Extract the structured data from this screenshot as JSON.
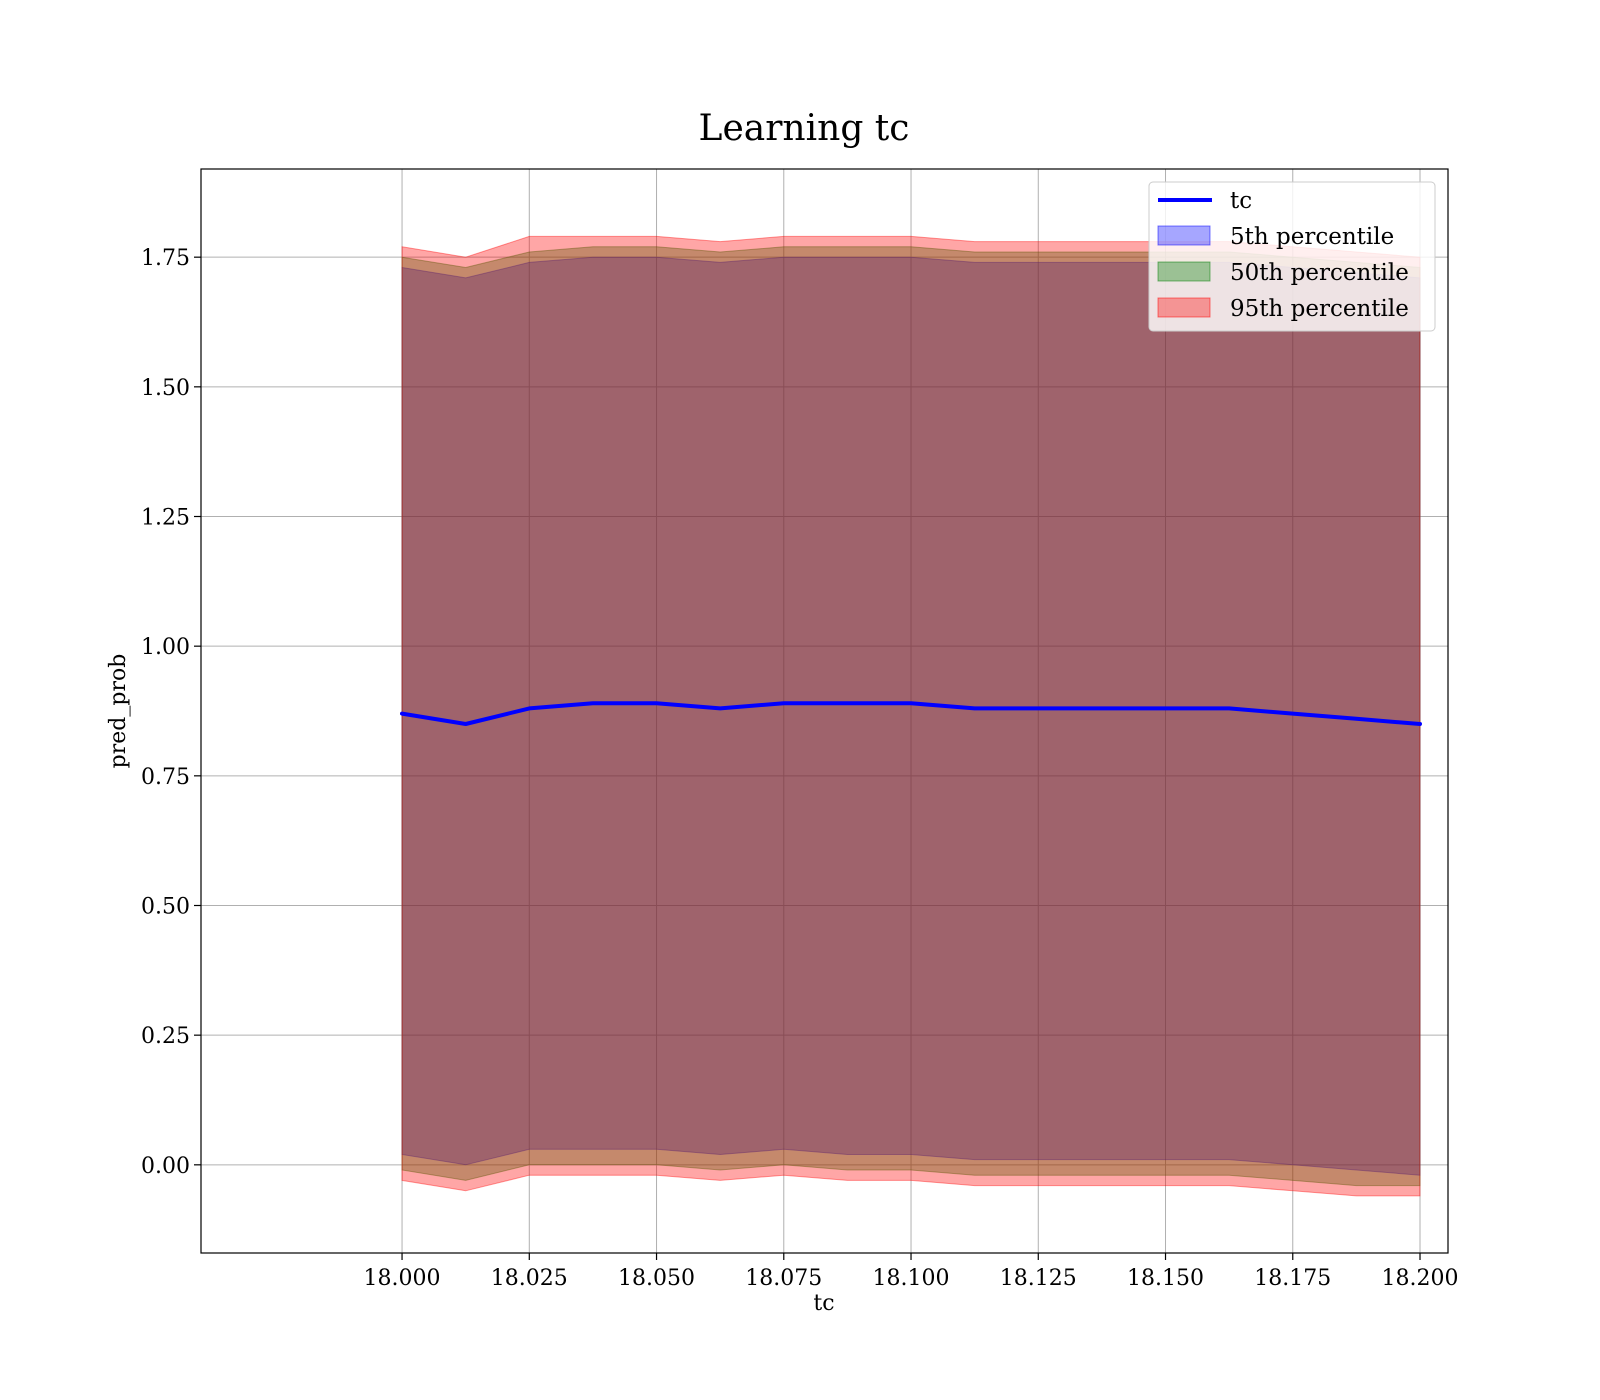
{
  "chart_data": {
    "type": "area",
    "title": "Learning tc",
    "xlabel": "tc",
    "ylabel": "pred_prob",
    "xlim": [
      17.9605,
      18.2055
    ],
    "ylim": [
      -0.17,
      1.92
    ],
    "x_ticks": [
      18.0,
      18.025,
      18.05,
      18.075,
      18.1,
      18.125,
      18.15,
      18.175,
      18.2
    ],
    "x_tick_labels": [
      "18.000",
      "18.025",
      "18.050",
      "18.075",
      "18.100",
      "18.125",
      "18.150",
      "18.175",
      "18.200"
    ],
    "y_ticks": [
      0.0,
      0.25,
      0.5,
      0.75,
      1.0,
      1.25,
      1.5,
      1.75
    ],
    "y_tick_labels": [
      "0.00",
      "0.25",
      "0.50",
      "0.75",
      "1.00",
      "1.25",
      "1.50",
      "1.75"
    ],
    "grid": true,
    "legend_position": "top-right",
    "x": [
      18.0,
      18.0125,
      18.025,
      18.0375,
      18.05,
      18.0625,
      18.075,
      18.0875,
      18.1,
      18.1125,
      18.125,
      18.1375,
      18.15,
      18.1625,
      18.175,
      18.1875,
      18.2
    ],
    "series": [
      {
        "name": "tc",
        "style": "line",
        "color": "#0000ff",
        "values": [
          0.87,
          0.85,
          0.88,
          0.89,
          0.89,
          0.88,
          0.89,
          0.89,
          0.89,
          0.88,
          0.88,
          0.88,
          0.88,
          0.88,
          0.87,
          0.86,
          0.85
        ]
      },
      {
        "name": "5th percentile",
        "style": "band",
        "color": "#0000ff",
        "lower": [
          0.02,
          0.0,
          0.03,
          0.03,
          0.03,
          0.02,
          0.03,
          0.02,
          0.02,
          0.01,
          0.01,
          0.01,
          0.01,
          0.01,
          0.0,
          -0.01,
          -0.02
        ],
        "upper": [
          1.73,
          1.71,
          1.74,
          1.75,
          1.75,
          1.74,
          1.75,
          1.75,
          1.75,
          1.74,
          1.74,
          1.74,
          1.74,
          1.74,
          1.73,
          1.72,
          1.71
        ]
      },
      {
        "name": "50th percentile",
        "style": "band",
        "color": "#008000",
        "lower": [
          -0.01,
          -0.03,
          0.0,
          0.0,
          0.0,
          -0.01,
          0.0,
          -0.01,
          -0.01,
          -0.02,
          -0.02,
          -0.02,
          -0.02,
          -0.02,
          -0.03,
          -0.04,
          -0.04
        ],
        "upper": [
          1.75,
          1.73,
          1.76,
          1.77,
          1.77,
          1.76,
          1.77,
          1.77,
          1.77,
          1.76,
          1.76,
          1.76,
          1.76,
          1.76,
          1.75,
          1.74,
          1.73
        ]
      },
      {
        "name": "95th percentile",
        "style": "band",
        "color": "#ff0000",
        "lower": [
          -0.03,
          -0.05,
          -0.02,
          -0.02,
          -0.02,
          -0.03,
          -0.02,
          -0.03,
          -0.03,
          -0.04,
          -0.04,
          -0.04,
          -0.04,
          -0.04,
          -0.05,
          -0.06,
          -0.06
        ],
        "upper": [
          1.77,
          1.75,
          1.79,
          1.79,
          1.79,
          1.78,
          1.79,
          1.79,
          1.79,
          1.78,
          1.78,
          1.78,
          1.78,
          1.78,
          1.77,
          1.76,
          1.75
        ]
      }
    ]
  },
  "colors": {
    "line": "#0000ff",
    "band_5th": "#0000ff",
    "band_50th": "#008000",
    "band_95th": "#ff0000",
    "grid": "#b0b0b0"
  }
}
